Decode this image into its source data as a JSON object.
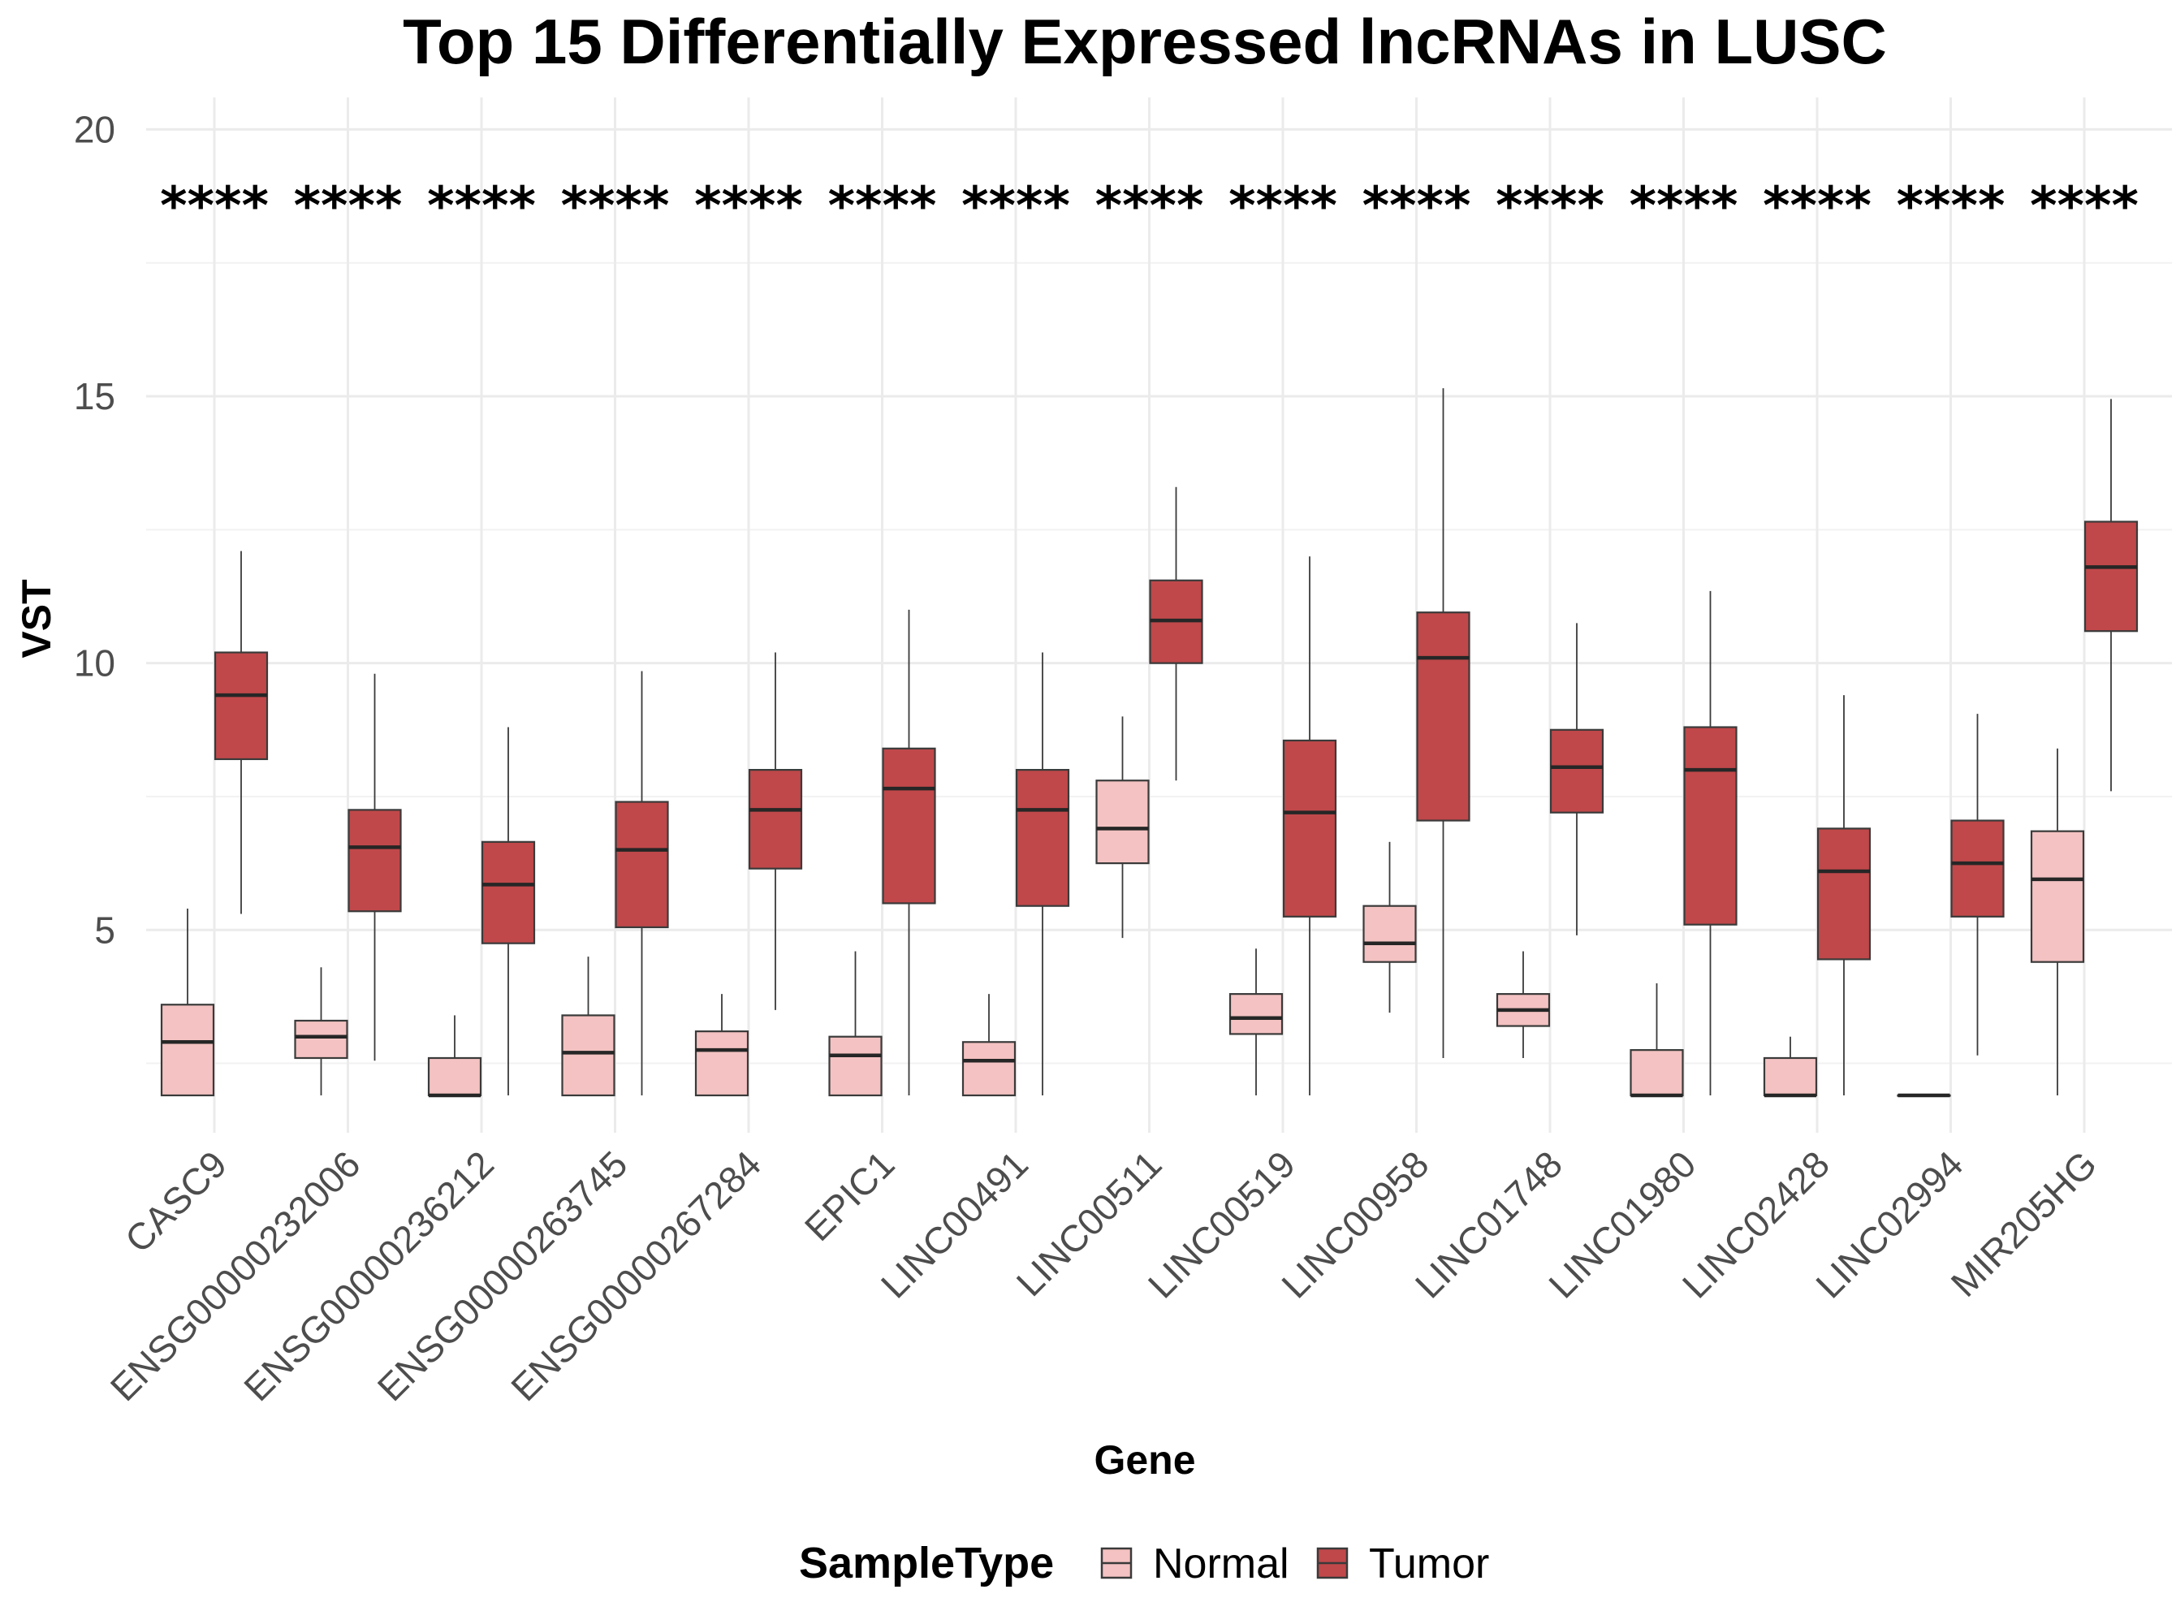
{
  "chart_data": {
    "type": "box",
    "title": "Top 15 Differentially Expressed lncRNAs in LUSC",
    "xlabel": "Gene",
    "ylabel": "VST",
    "ylim": [
      1.2,
      20.6
    ],
    "yticks": [
      5,
      10,
      15,
      20
    ],
    "grid": true,
    "legend": {
      "title": "SampleType",
      "position": "bottom",
      "entries": [
        "Normal",
        "Tumor"
      ]
    },
    "colors": {
      "Normal": "#f4c2c2",
      "Tumor": "#c0484a",
      "outline": "#3a3a3a"
    },
    "significance_label": "****",
    "significance_y": 18.6,
    "categories": [
      "CASC9",
      "ENSG00000232006",
      "ENSG00000236212",
      "ENSG00000263745",
      "ENSG00000267284",
      "EPIC1",
      "LINC00491",
      "LINC00511",
      "LINC00519",
      "LINC00958",
      "LINC01748",
      "LINC01980",
      "LINC02428",
      "LINC02994",
      "MIR205HG"
    ],
    "series": [
      {
        "name": "Normal",
        "boxes": [
          {
            "min": 1.9,
            "q1": 1.9,
            "median": 2.9,
            "q3": 3.6,
            "max": 5.4
          },
          {
            "min": 1.9,
            "q1": 2.6,
            "median": 3.0,
            "q3": 3.3,
            "max": 4.3
          },
          {
            "min": 1.9,
            "q1": 1.9,
            "median": 1.9,
            "q3": 2.6,
            "max": 3.4
          },
          {
            "min": 1.9,
            "q1": 1.9,
            "median": 2.7,
            "q3": 3.4,
            "max": 4.5
          },
          {
            "min": 1.9,
            "q1": 1.9,
            "median": 2.75,
            "q3": 3.1,
            "max": 3.8
          },
          {
            "min": 1.9,
            "q1": 1.9,
            "median": 2.65,
            "q3": 3.0,
            "max": 4.6
          },
          {
            "min": 1.9,
            "q1": 1.9,
            "median": 2.55,
            "q3": 2.9,
            "max": 3.8
          },
          {
            "min": 4.85,
            "q1": 6.25,
            "median": 6.9,
            "q3": 7.8,
            "max": 9.0
          },
          {
            "min": 1.9,
            "q1": 3.05,
            "median": 3.35,
            "q3": 3.8,
            "max": 4.65
          },
          {
            "min": 3.45,
            "q1": 4.4,
            "median": 4.75,
            "q3": 5.45,
            "max": 6.65
          },
          {
            "min": 2.6,
            "q1": 3.2,
            "median": 3.5,
            "q3": 3.8,
            "max": 4.6
          },
          {
            "min": 1.9,
            "q1": 1.9,
            "median": 1.9,
            "q3": 2.75,
            "max": 4.0
          },
          {
            "min": 1.9,
            "q1": 1.9,
            "median": 1.9,
            "q3": 2.6,
            "max": 3.0
          },
          {
            "min": 1.9,
            "q1": 1.9,
            "median": 1.9,
            "q3": 1.9,
            "max": 1.9
          },
          {
            "min": 1.9,
            "q1": 4.4,
            "median": 5.95,
            "q3": 6.85,
            "max": 8.4
          }
        ]
      },
      {
        "name": "Tumor",
        "boxes": [
          {
            "min": 5.3,
            "q1": 8.2,
            "median": 9.4,
            "q3": 10.2,
            "max": 12.1
          },
          {
            "min": 2.55,
            "q1": 5.35,
            "median": 6.55,
            "q3": 7.25,
            "max": 9.8
          },
          {
            "min": 1.9,
            "q1": 4.75,
            "median": 5.85,
            "q3": 6.65,
            "max": 8.8
          },
          {
            "min": 1.9,
            "q1": 5.05,
            "median": 6.5,
            "q3": 7.4,
            "max": 9.85
          },
          {
            "min": 3.5,
            "q1": 6.15,
            "median": 7.25,
            "q3": 8.0,
            "max": 10.2
          },
          {
            "min": 1.9,
            "q1": 5.5,
            "median": 7.65,
            "q3": 8.4,
            "max": 11.0
          },
          {
            "min": 1.9,
            "q1": 5.45,
            "median": 7.25,
            "q3": 8.0,
            "max": 10.2
          },
          {
            "min": 7.8,
            "q1": 10.0,
            "median": 10.8,
            "q3": 11.55,
            "max": 13.3
          },
          {
            "min": 1.9,
            "q1": 5.25,
            "median": 7.2,
            "q3": 8.55,
            "max": 12.0
          },
          {
            "min": 2.6,
            "q1": 7.05,
            "median": 10.1,
            "q3": 10.95,
            "max": 15.15
          },
          {
            "min": 4.9,
            "q1": 7.2,
            "median": 8.05,
            "q3": 8.75,
            "max": 10.75
          },
          {
            "min": 1.9,
            "q1": 5.1,
            "median": 8.0,
            "q3": 8.8,
            "max": 11.35
          },
          {
            "min": 1.9,
            "q1": 4.45,
            "median": 6.1,
            "q3": 6.9,
            "max": 9.4
          },
          {
            "min": 2.65,
            "q1": 5.25,
            "median": 6.25,
            "q3": 7.05,
            "max": 9.05
          },
          {
            "min": 7.6,
            "q1": 10.6,
            "median": 11.8,
            "q3": 12.65,
            "max": 14.95
          }
        ]
      }
    ]
  }
}
